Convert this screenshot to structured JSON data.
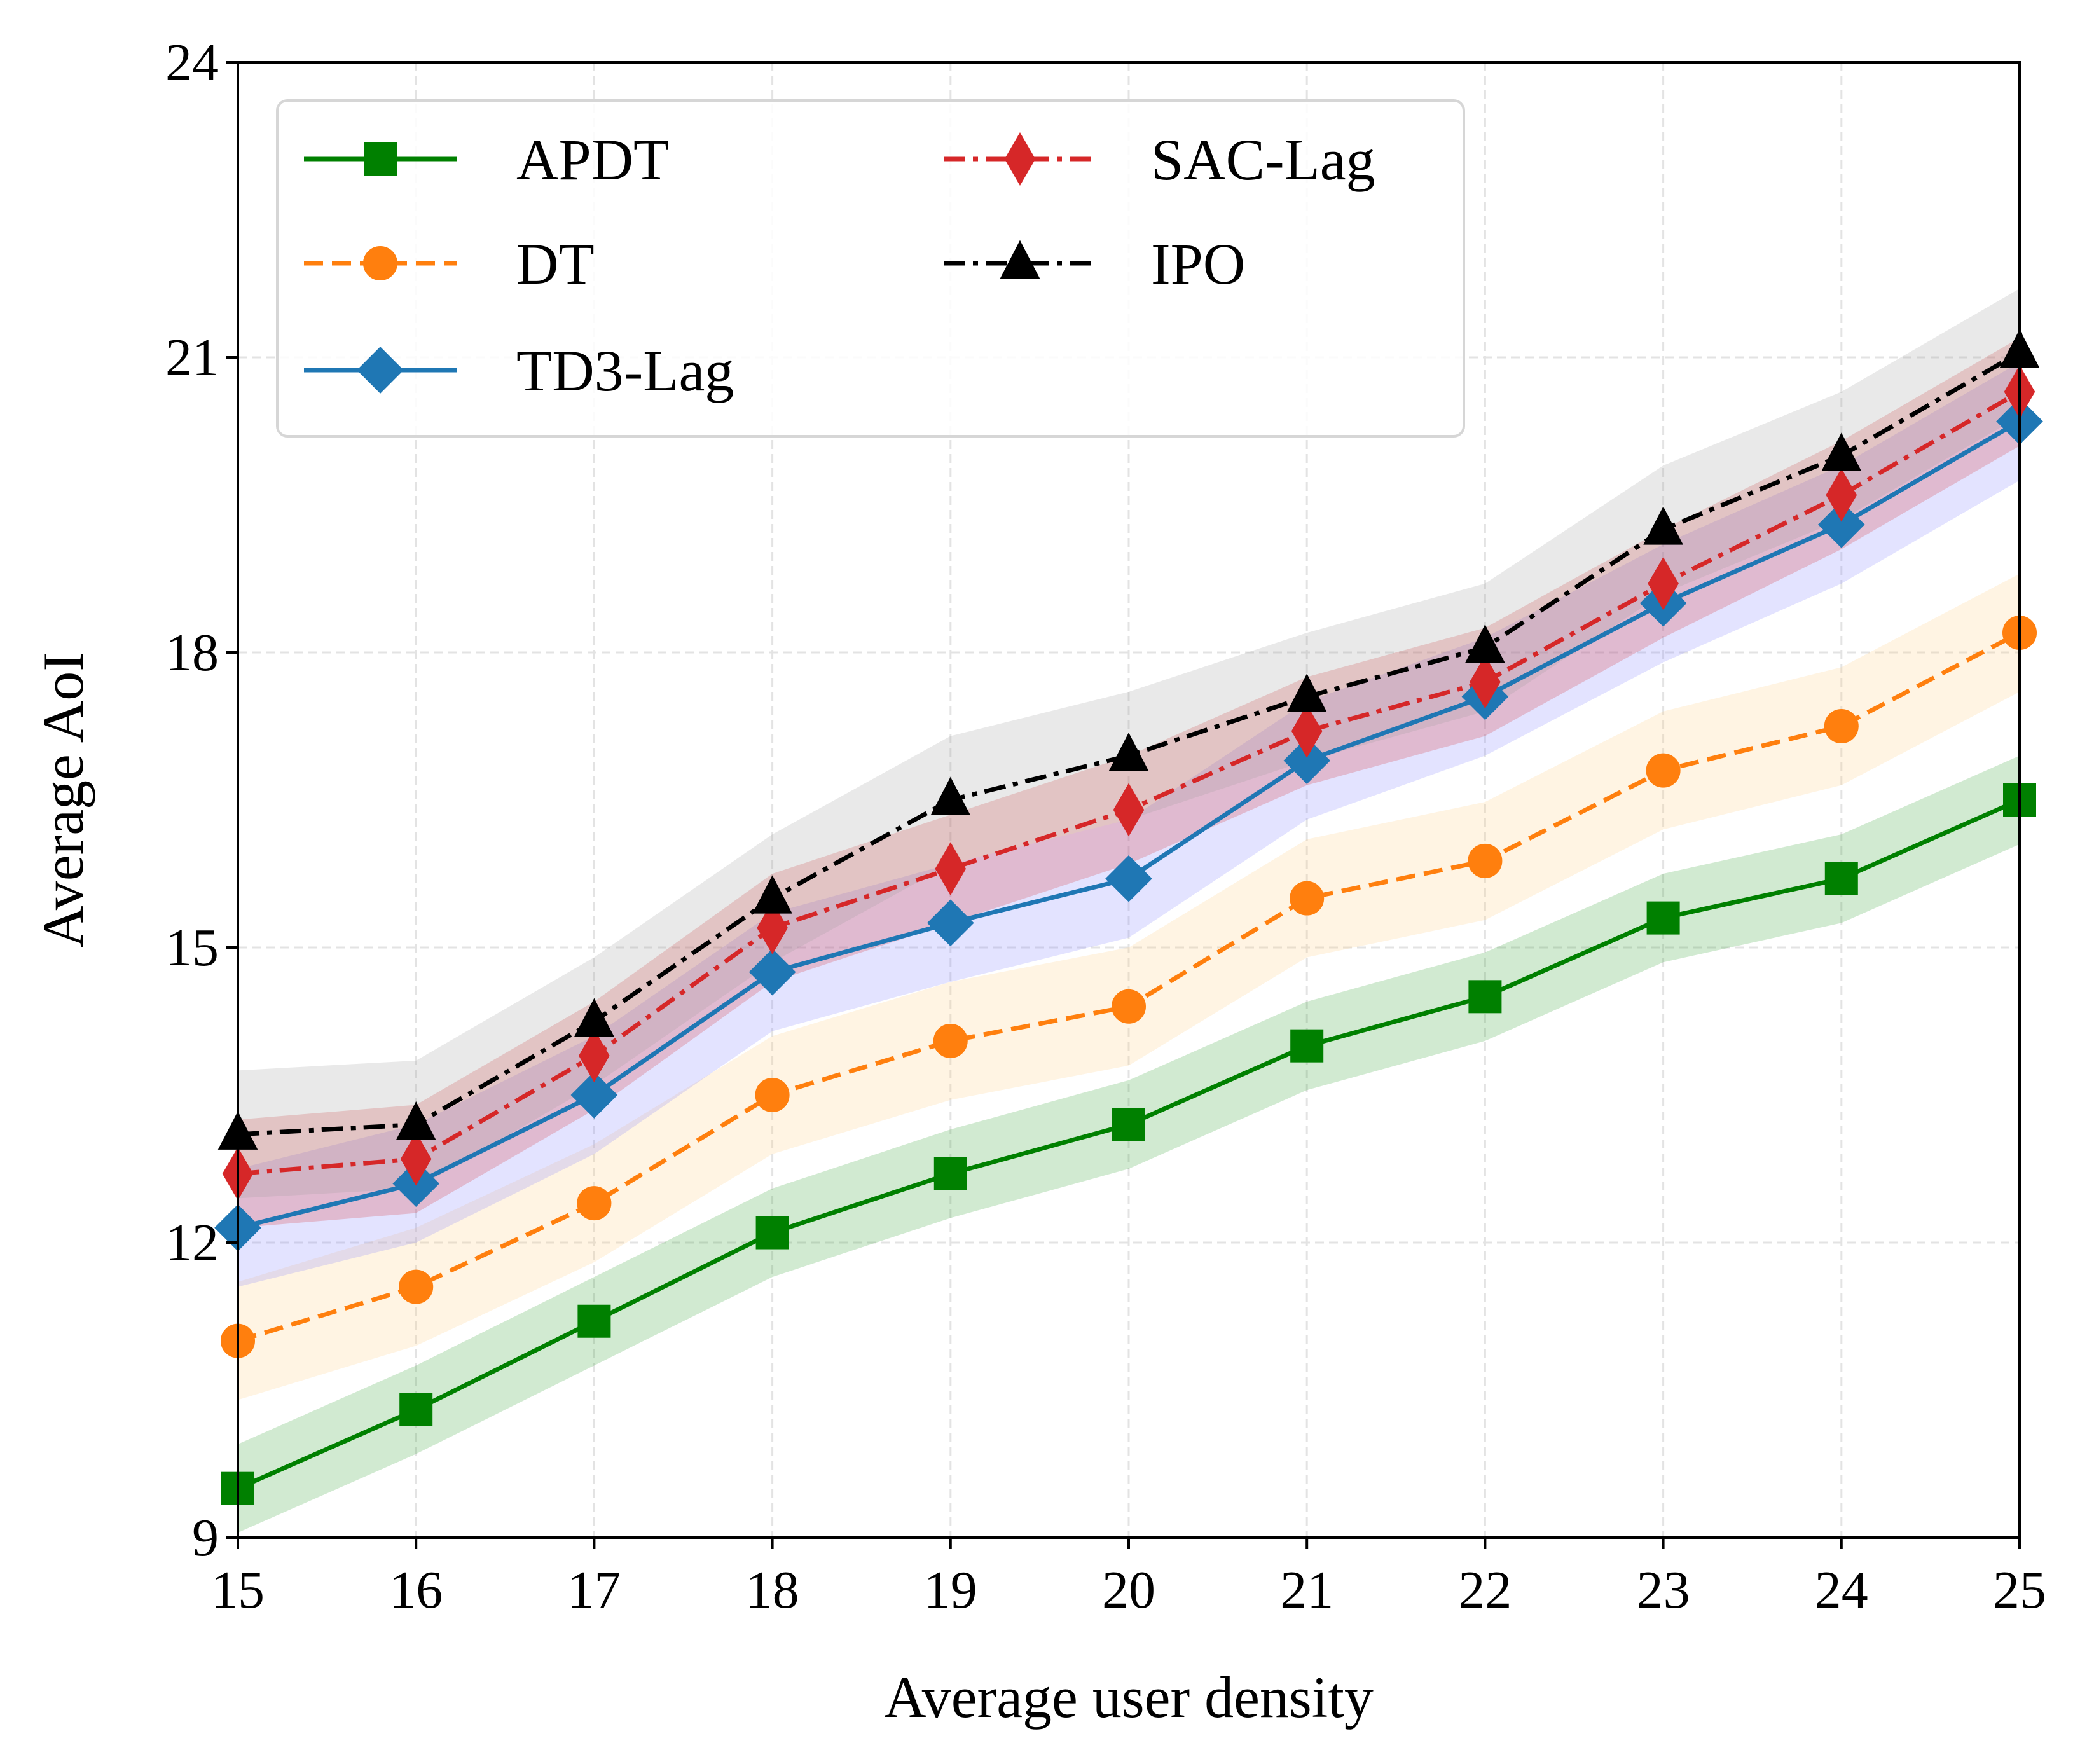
{
  "chart_data": {
    "type": "line",
    "title": "",
    "xlabel": "Average user density",
    "ylabel": "Average AoI",
    "xlim": [
      15,
      25
    ],
    "ylim": [
      9,
      24
    ],
    "xticks": [
      15,
      16,
      17,
      18,
      19,
      20,
      21,
      22,
      23,
      24,
      25
    ],
    "yticks": [
      9,
      12,
      15,
      18,
      21,
      24
    ],
    "grid": true,
    "legend_position": "top-left",
    "x": [
      15,
      16,
      17,
      18,
      19,
      20,
      21,
      22,
      23,
      24,
      25
    ],
    "series": [
      {
        "name": "APDT",
        "color": "#008000",
        "linestyle": "solid",
        "marker": "square",
        "values": [
          9.5,
          10.3,
          11.2,
          12.1,
          12.7,
          13.2,
          14.0,
          14.5,
          15.3,
          15.7,
          16.5
        ],
        "band": 0.45,
        "band_color": "#2ca02c"
      },
      {
        "name": "DT",
        "color": "#ff7f0e",
        "linestyle": "dashed",
        "marker": "circle",
        "values": [
          11.0,
          11.55,
          12.4,
          13.5,
          14.05,
          14.4,
          15.5,
          15.88,
          16.8,
          17.25,
          18.2
        ],
        "band": 0.6,
        "band_color": "#ffcc80"
      },
      {
        "name": "TD3-Lag",
        "color": "#1f77b4",
        "linestyle": "solid",
        "marker": "diamond",
        "values": [
          12.15,
          12.6,
          13.5,
          14.75,
          15.25,
          15.7,
          16.9,
          17.55,
          18.5,
          19.3,
          20.35
        ],
        "band": 0.6,
        "band_color": "#8080ff"
      },
      {
        "name": "SAC-Lag",
        "color": "#d62728",
        "linestyle": "dashdot",
        "marker": "thin_diamond",
        "values": [
          12.7,
          12.85,
          13.9,
          15.2,
          15.8,
          16.4,
          17.2,
          17.7,
          18.7,
          19.6,
          20.65
        ],
        "band": 0.55,
        "band_color": "#d62728"
      },
      {
        "name": "IPO",
        "color": "#000000",
        "linestyle": "dashdot",
        "marker": "triangle",
        "values": [
          13.1,
          13.2,
          14.25,
          15.5,
          16.5,
          16.95,
          17.55,
          18.05,
          19.25,
          20.0,
          21.05
        ],
        "band": 0.65,
        "band_color": "#999999"
      }
    ]
  }
}
